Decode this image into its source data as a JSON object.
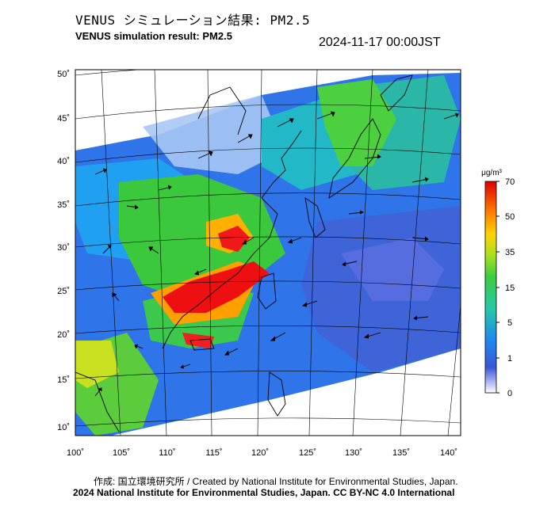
{
  "header": {
    "title_jp": "VENUS シミュレーション結果: PM2.5",
    "title_en": "VENUS simulation result: PM2.5",
    "timestamp": "2024-11-17 00:00JST"
  },
  "map": {
    "lat_labels": [
      "50˚",
      "45˚",
      "40˚",
      "35˚",
      "30˚",
      "25˚",
      "20˚",
      "15˚",
      "10˚"
    ],
    "lon_labels": [
      "100˚",
      "105˚",
      "110˚",
      "115˚",
      "120˚",
      "125˚",
      "130˚",
      "135˚",
      "140˚"
    ],
    "colors": {
      "background": "#ffffff",
      "coast": "#000000",
      "grid": "#000000",
      "arrow": "#000000"
    }
  },
  "colorbar": {
    "unit": "μg/m³",
    "ticks": [
      "70",
      "50",
      "35",
      "15",
      "5",
      "1",
      "0"
    ],
    "colors": [
      "#ffffff",
      "#3b55d8",
      "#1e9ef0",
      "#28c8a8",
      "#3ccc3c",
      "#a8e020",
      "#ffd400",
      "#ff8000",
      "#ff1a00",
      "#e00000"
    ]
  },
  "footer": {
    "credit": "作成: 国立環境研究所 / Created by National Institute for Environmental Studies, Japan.",
    "copyright": "2024 National Institute for Environmental Studies, Japan. CC BY-NC 4.0 International"
  }
}
